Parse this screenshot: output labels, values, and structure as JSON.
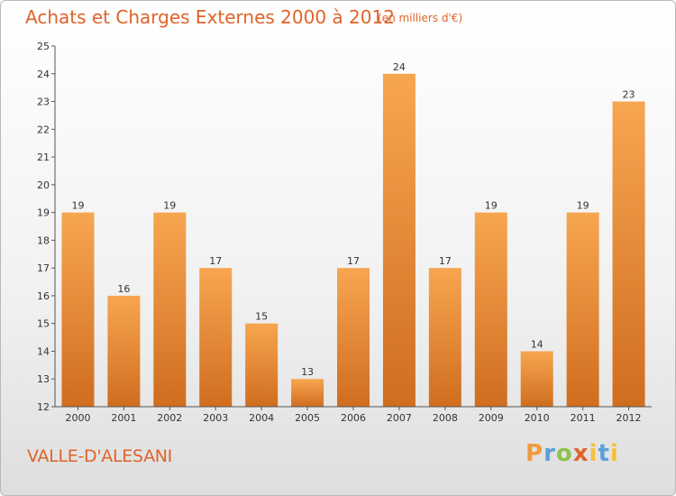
{
  "header": {
    "title": "Achats et Charges Externes 2000 à 2012",
    "subtitle": "(en milliers d'€)"
  },
  "footer": {
    "commune": "VALLE-D'ALESANI",
    "logo_text": "Proxiti"
  },
  "colors": {
    "accent": "#e0632a",
    "bar_top": "#f7a650",
    "bar_bottom": "#d06d1f"
  },
  "chart_data": {
    "type": "bar",
    "title": "Achats et Charges Externes 2000 à 2012",
    "subtitle": "(en milliers d'€)",
    "xlabel": "",
    "ylabel": "",
    "categories": [
      "2000",
      "2001",
      "2002",
      "2003",
      "2004",
      "2005",
      "2006",
      "2007",
      "2008",
      "2009",
      "2010",
      "2011",
      "2012"
    ],
    "values": [
      19,
      16,
      19,
      17,
      15,
      13,
      17,
      24,
      17,
      19,
      14,
      19,
      23
    ],
    "ylim": [
      12,
      25
    ],
    "yticks": [
      12,
      13,
      14,
      15,
      16,
      17,
      18,
      19,
      20,
      21,
      22,
      23,
      24,
      25
    ],
    "data_labels": true,
    "grid": false,
    "legend": "none"
  }
}
